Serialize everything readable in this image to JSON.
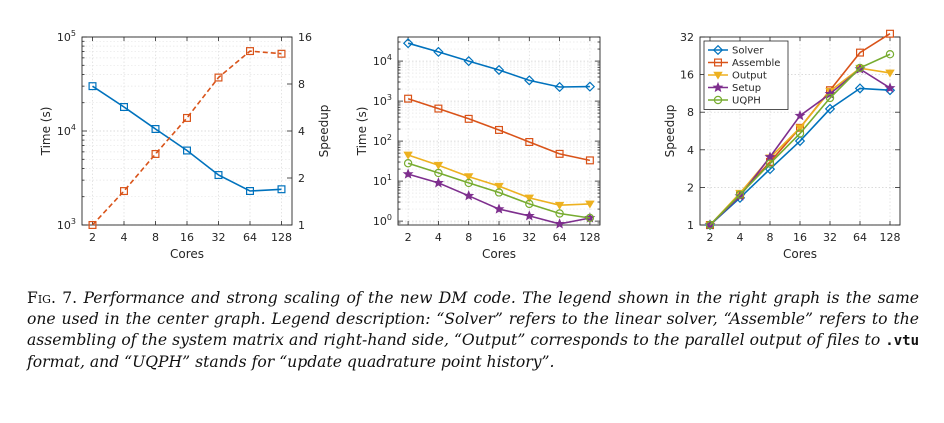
{
  "chart_data": [
    {
      "type": "line",
      "id": "left",
      "xlabel": "Cores",
      "ylabel": "Time (s)",
      "y2label": "Speedup",
      "x": [
        2,
        4,
        8,
        16,
        32,
        64,
        128
      ],
      "xticks": [
        "2",
        "4",
        "8",
        "16",
        "32",
        "64",
        "128"
      ],
      "yscale": "log",
      "ylim": [
        1000,
        100000
      ],
      "yticks": [
        {
          "v": 1000,
          "b": "10",
          "e": "3"
        },
        {
          "v": 10000,
          "b": "10",
          "e": "4"
        },
        {
          "v": 100000,
          "b": "10",
          "e": "5"
        }
      ],
      "y2scale": "log2",
      "y2lim": [
        1,
        16
      ],
      "y2ticks": [
        "1",
        "2",
        "4",
        "8",
        "16"
      ],
      "series": [
        {
          "name": "Time",
          "axis": "left",
          "color": "#0072BD",
          "marker": "square",
          "dash": false,
          "values": [
            30000,
            18000,
            10500,
            6200,
            3400,
            2300,
            2400
          ]
        },
        {
          "name": "Speedup",
          "axis": "right",
          "color": "#D95319",
          "marker": "square",
          "dash": true,
          "values": [
            1,
            1.65,
            2.85,
            4.85,
            8.8,
            13.0,
            12.5
          ]
        }
      ]
    },
    {
      "type": "line",
      "id": "center",
      "xlabel": "Cores",
      "ylabel": "Time (s)",
      "x": [
        2,
        4,
        8,
        16,
        32,
        64,
        128
      ],
      "xticks": [
        "2",
        "4",
        "8",
        "16",
        "32",
        "64",
        "128"
      ],
      "yscale": "log",
      "ylim": [
        0.8,
        40000
      ],
      "yticks": [
        {
          "v": 1,
          "b": "10",
          "e": "0"
        },
        {
          "v": 10,
          "b": "10",
          "e": "1"
        },
        {
          "v": 100,
          "b": "10",
          "e": "2"
        },
        {
          "v": 1000,
          "b": "10",
          "e": "3"
        },
        {
          "v": 10000,
          "b": "10",
          "e": "4"
        }
      ],
      "series": [
        {
          "name": "Solver",
          "color": "#0072BD",
          "marker": "diamond",
          "values": [
            28000,
            17000,
            10000,
            6000,
            3300,
            2250,
            2300
          ]
        },
        {
          "name": "Assemble",
          "color": "#D95319",
          "marker": "square",
          "values": [
            1150,
            650,
            360,
            190,
            95,
            48,
            33
          ]
        },
        {
          "name": "Output",
          "color": "#EDB120",
          "marker": "triangle-down",
          "values": [
            45,
            25,
            13,
            7.5,
            3.8,
            2.5,
            2.7
          ]
        },
        {
          "name": "Setup",
          "color": "#7E2F8E",
          "marker": "star",
          "values": [
            15,
            9,
            4.3,
            2.0,
            1.35,
            0.85,
            1.2
          ]
        },
        {
          "name": "UQPH",
          "color": "#77AC30",
          "marker": "circle",
          "values": [
            28,
            16,
            9,
            5.2,
            2.7,
            1.55,
            1.2
          ]
        }
      ]
    },
    {
      "type": "line",
      "id": "right",
      "xlabel": "Cores",
      "ylabel": "Speedup",
      "x": [
        2,
        4,
        8,
        16,
        32,
        64,
        128
      ],
      "xticks": [
        "2",
        "4",
        "8",
        "16",
        "32",
        "64",
        "128"
      ],
      "yscale": "log2",
      "ylim": [
        1,
        32
      ],
      "yticks": [
        "1",
        "2",
        "4",
        "8",
        "16",
        "32"
      ],
      "legend": {
        "position": "top-left",
        "entries": [
          "Solver",
          "Assemble",
          "Output",
          "Setup",
          "UQPH"
        ]
      },
      "series": [
        {
          "name": "Solver",
          "color": "#0072BD",
          "marker": "diamond",
          "values": [
            1,
            1.65,
            2.8,
            4.7,
            8.5,
            12.4,
            12.0
          ]
        },
        {
          "name": "Assemble",
          "color": "#D95319",
          "marker": "square",
          "values": [
            1,
            1.75,
            3.2,
            6.0,
            12.0,
            24.0,
            34.0
          ]
        },
        {
          "name": "Output",
          "color": "#EDB120",
          "marker": "triangle-down",
          "values": [
            1,
            1.8,
            3.45,
            6.0,
            11.8,
            18.0,
            16.5
          ]
        },
        {
          "name": "Setup",
          "color": "#7E2F8E",
          "marker": "star",
          "values": [
            1,
            1.7,
            3.5,
            7.5,
            11.2,
            17.7,
            12.5
          ]
        },
        {
          "name": "UQPH",
          "color": "#77AC30",
          "marker": "circle",
          "values": [
            1,
            1.75,
            3.1,
            5.4,
            10.4,
            18.1,
            23.3
          ]
        }
      ]
    }
  ],
  "caption": {
    "label": "Fig. 7.",
    "text_1": "Performance and strong scaling of the new DM code. The legend shown in the right graph is the same one used in the center graph. Legend description: “Solver” refers to the linear solver, “Assemble” refers to the assembling of the system matrix and right-hand side, “Output” corresponds to the parallel output of files to ",
    "code": ".vtu",
    "text_2": " format, and “UQPH” stands for “update quadrature point history”."
  }
}
